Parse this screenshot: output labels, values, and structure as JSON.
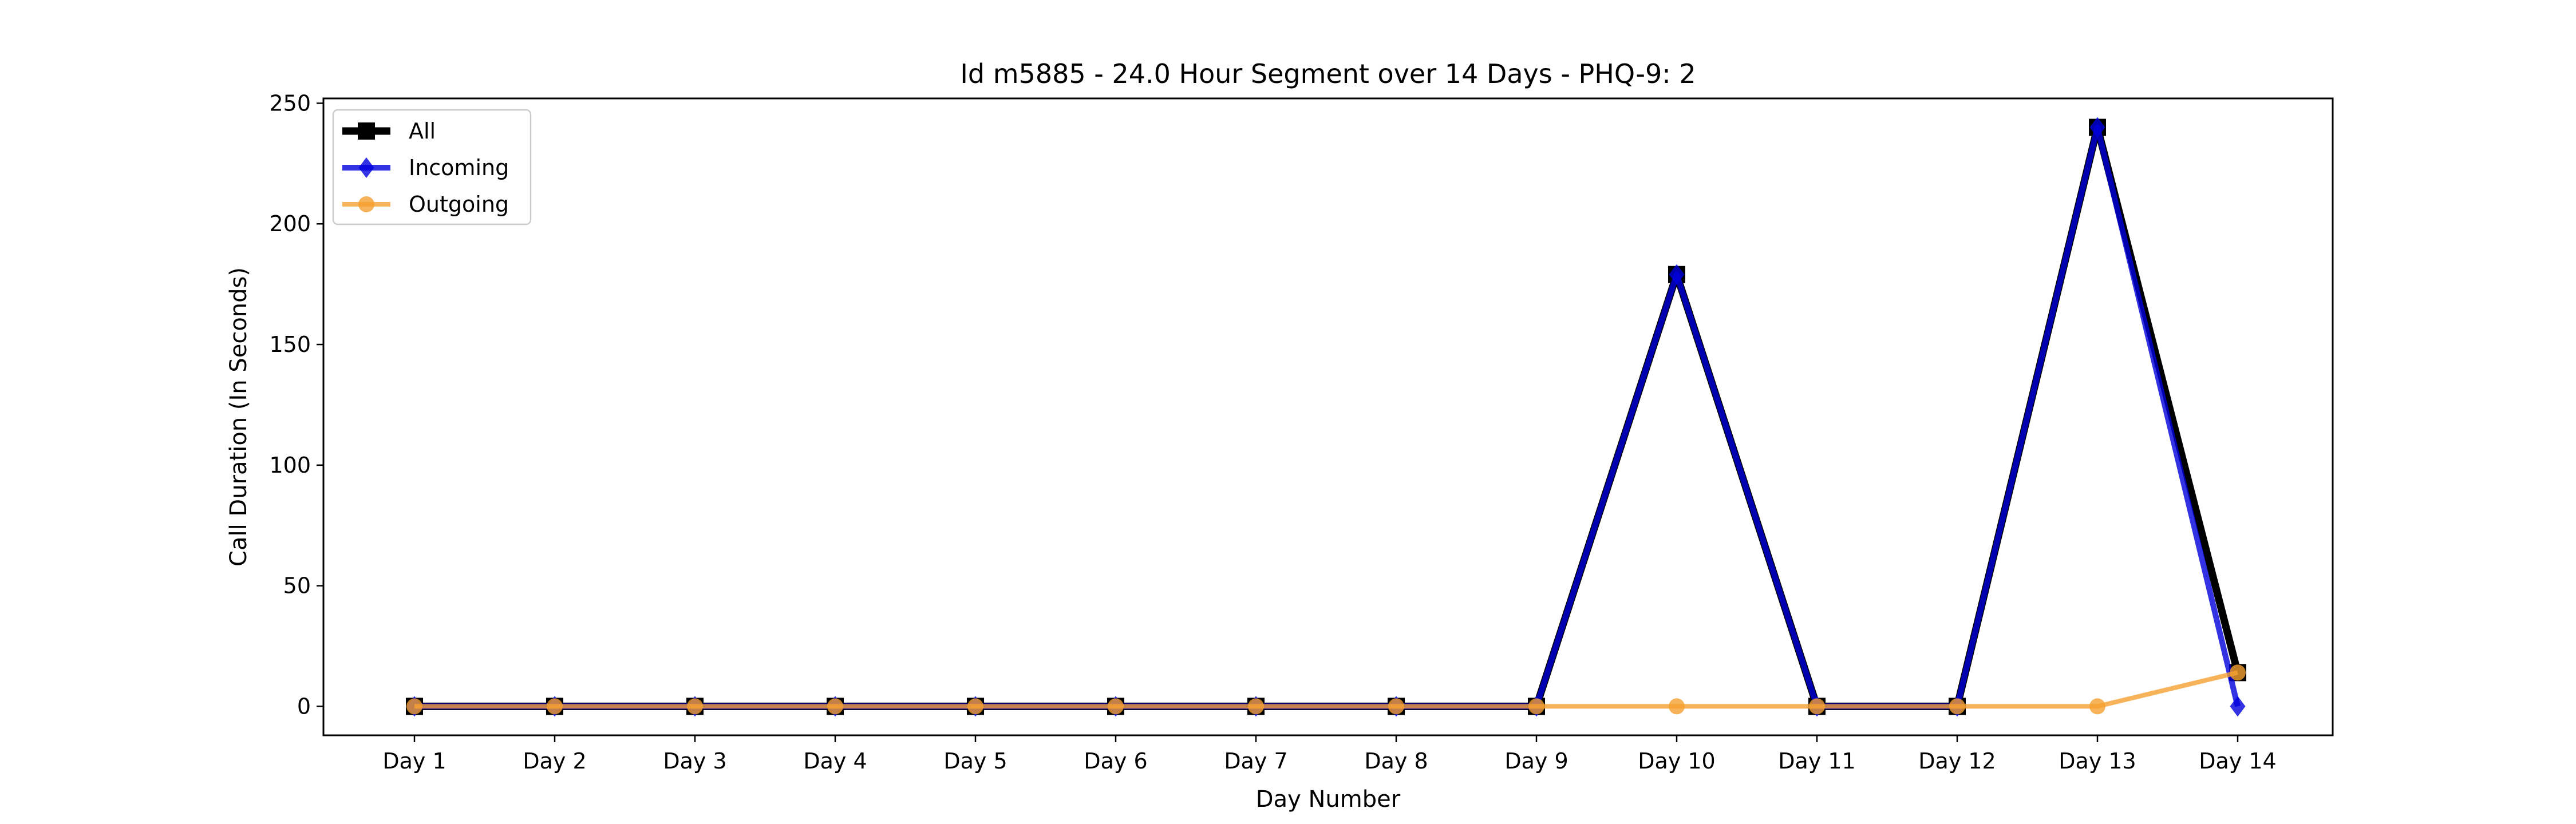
{
  "chart_data": {
    "type": "line",
    "title": "Id m5885 - 24.0 Hour Segment over 14 Days - PHQ-9: 2",
    "xlabel": "Day Number",
    "ylabel": "Call Duration (In Seconds)",
    "categories": [
      "Day 1",
      "Day 2",
      "Day 3",
      "Day 4",
      "Day 5",
      "Day 6",
      "Day 7",
      "Day 8",
      "Day 9",
      "Day 10",
      "Day 11",
      "Day 12",
      "Day 13",
      "Day 14"
    ],
    "ylim": [
      -12,
      252
    ],
    "yticks": [
      0,
      50,
      100,
      150,
      200,
      250
    ],
    "grid": false,
    "legend_position": "top-left",
    "series": [
      {
        "name": "All",
        "color": "#000000",
        "marker": "square",
        "values": [
          0,
          0,
          0,
          0,
          0,
          0,
          0,
          0,
          0,
          179,
          0,
          0,
          240,
          14
        ]
      },
      {
        "name": "Incoming",
        "color": "#0000dd",
        "marker": "diamond",
        "values": [
          0,
          0,
          0,
          0,
          0,
          0,
          0,
          0,
          0,
          179,
          0,
          0,
          240,
          0
        ]
      },
      {
        "name": "Outgoing",
        "color": "#f5a030",
        "marker": "circle",
        "values": [
          0,
          0,
          0,
          0,
          0,
          0,
          0,
          0,
          0,
          0,
          0,
          0,
          0,
          14
        ]
      }
    ]
  }
}
